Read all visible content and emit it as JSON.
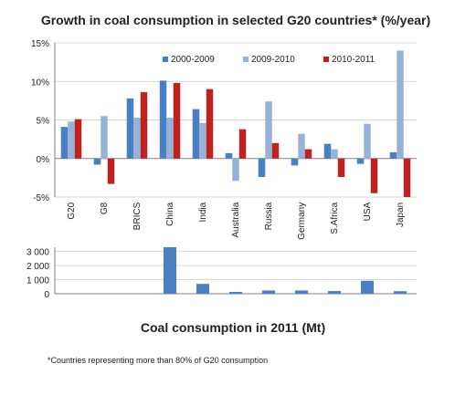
{
  "colors": {
    "s2000_2009": "#4a7fc1",
    "s2009_2010": "#95b3d7",
    "s2010_2011": "#c0201e",
    "consumption": "#4a7fc1",
    "axis": "#808080",
    "grid": "#d9d9d9"
  },
  "footnote": "*Countries representing more than 80% of G20 consumption",
  "chart_data": [
    {
      "type": "bar",
      "title": "Growth in coal consumption in selected G20 countries* (%/year)",
      "categories": [
        "G20",
        "G8",
        "BRICS",
        "China",
        "India",
        "Australia",
        "Russia",
        "Germany",
        "S.Africa",
        "USA",
        "Japan"
      ],
      "series": [
        {
          "name": "2000-2009",
          "values": [
            4.1,
            -0.8,
            7.8,
            10.1,
            6.4,
            0.7,
            -2.4,
            -0.9,
            1.9,
            -0.7,
            0.8
          ]
        },
        {
          "name": "2009-2010",
          "values": [
            4.8,
            5.5,
            5.3,
            5.3,
            4.6,
            -2.9,
            7.4,
            3.2,
            1.2,
            4.5,
            14.0
          ]
        },
        {
          "name": "2010-2011",
          "values": [
            5.1,
            -3.3,
            8.6,
            9.8,
            9.0,
            3.8,
            2.0,
            1.2,
            -2.4,
            -4.5,
            -5.0
          ]
        }
      ],
      "y_ticks": [
        "-5%",
        "0%",
        "5%",
        "10%",
        "15%"
      ],
      "ylim": [
        -5,
        15
      ],
      "grid": true,
      "legend": "top-center"
    },
    {
      "type": "bar",
      "title": "Coal consumption in 2011 (Mt)",
      "categories": [
        "G20",
        "G8",
        "BRICS",
        "China",
        "India",
        "Australia",
        "Russia",
        "Germany",
        "S.Africa",
        "USA",
        "Japan"
      ],
      "series": [
        {
          "values": [
            null,
            null,
            null,
            3300,
            700,
            130,
            230,
            230,
            190,
            920,
            180
          ]
        }
      ],
      "y_ticks": [
        "0",
        "1 000",
        "2 000",
        "3 000"
      ],
      "ylim": [
        0,
        3300
      ],
      "grid": true
    }
  ]
}
